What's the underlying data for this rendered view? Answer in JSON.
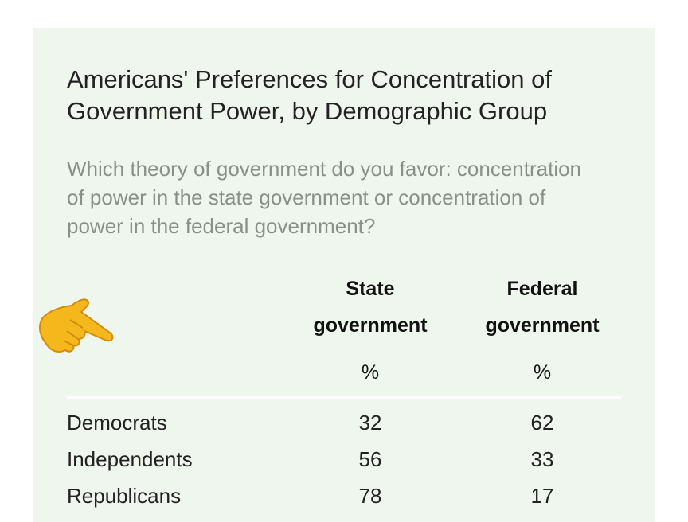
{
  "header": {
    "title": "Americans' Preferences for Concentration of Government Power, by Demographic Group",
    "subtitle": "Which theory of government do you favor: concentration of power in the state government or concentration of power in the federal government?"
  },
  "table": {
    "columns": [
      {
        "label": "State government",
        "unit": "%"
      },
      {
        "label": "Federal government",
        "unit": "%"
      }
    ],
    "rows": [
      [
        "Democrats",
        32,
        62
      ],
      [
        "Independents",
        56,
        33
      ],
      [
        "Republicans",
        78,
        17
      ]
    ]
  }
}
